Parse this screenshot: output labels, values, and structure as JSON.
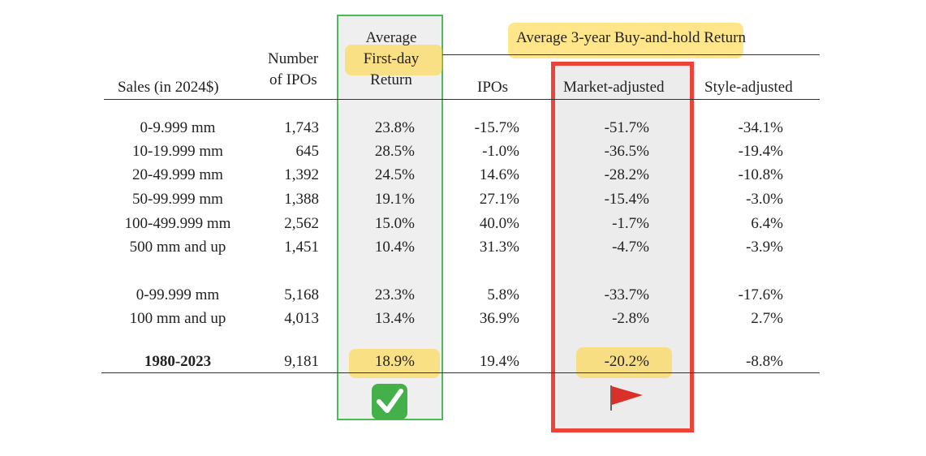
{
  "table": {
    "header": {
      "sales": "Sales (in 2024$)",
      "number": [
        "Number",
        "of IPOs"
      ],
      "first_day": [
        "Average",
        "First-day",
        "Return"
      ],
      "span": "Average 3-year Buy-and-hold Return",
      "ipos": "IPOs",
      "market": "Market-adjusted",
      "style": "Style-adjusted"
    },
    "row_groups": [
      [
        [
          "0-9.999 mm",
          "1,743",
          "23.8%",
          "-15.7%",
          "-51.7%",
          "-34.1%"
        ],
        [
          "10-19.999 mm",
          "645",
          "28.5%",
          "-1.0%",
          "-36.5%",
          "-19.4%"
        ],
        [
          "20-49.999 mm",
          "1,392",
          "24.5%",
          "14.6%",
          "-28.2%",
          "-10.8%"
        ],
        [
          "50-99.999 mm",
          "1,388",
          "19.1%",
          "27.1%",
          "-15.4%",
          "-3.0%"
        ],
        [
          "100-499.999 mm",
          "2,562",
          "15.0%",
          "40.0%",
          "-1.7%",
          "6.4%"
        ],
        [
          "500 mm and up",
          "1,451",
          "10.4%",
          "31.3%",
          "-4.7%",
          "-3.9%"
        ]
      ],
      [
        [
          "0-99.999 mm",
          "5,168",
          "23.3%",
          "5.8%",
          "-33.7%",
          "-17.6%"
        ],
        [
          "100 mm and up",
          "4,013",
          "13.4%",
          "36.9%",
          "-2.8%",
          "2.7%"
        ]
      ],
      [
        [
          "1980-2023",
          "9,181",
          "18.9%",
          "19.4%",
          "-20.2%",
          "-8.8%"
        ]
      ]
    ]
  }
}
